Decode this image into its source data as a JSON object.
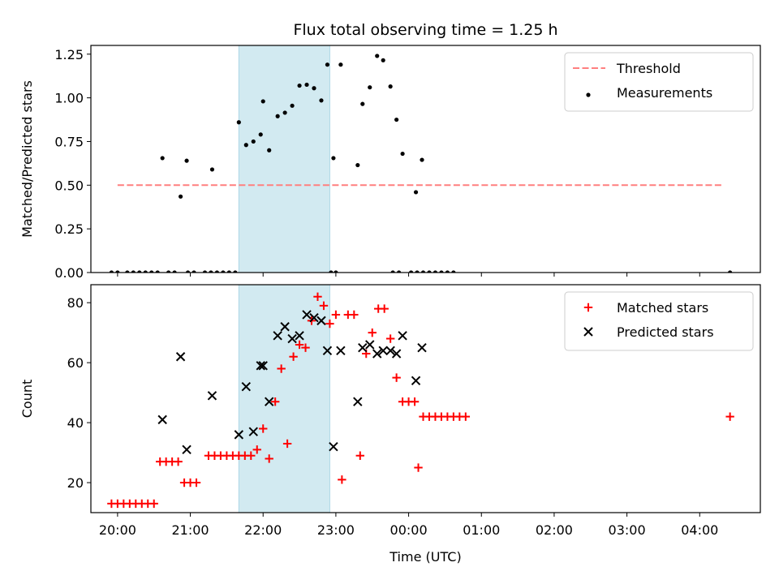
{
  "figure": {
    "title": "Flux total observing time = 1.25 h"
  },
  "colors": {
    "threshold": "#ff7f7f",
    "highlight": "#add8e6",
    "measurement": "#000000",
    "matched": "#ff0000",
    "predicted": "#000000"
  },
  "chart_data": [
    {
      "type": "scatter",
      "name": "ratio-panel",
      "title": "Flux total observing time = 1.25 h",
      "xlabel": "",
      "ylabel": "Matched/Predicted stars",
      "ylim": [
        0,
        1.3
      ],
      "yticks": [
        0,
        0.25,
        0.5,
        0.75,
        1.0,
        1.25
      ],
      "ytick_labels": [
        "0.00",
        "0.25",
        "0.50",
        "0.75",
        "1.00",
        "1.25"
      ],
      "xlim": [
        "19:38",
        "04:50"
      ],
      "xticks": [
        "20:00",
        "21:00",
        "22:00",
        "23:00",
        "00:00",
        "01:00",
        "02:00",
        "03:00",
        "04:00"
      ],
      "shaded_region": {
        "x0": "21:40",
        "x1": "22:55"
      },
      "legend": {
        "position": "top-right",
        "entries": [
          "Threshold",
          "Measurements"
        ]
      },
      "threshold": {
        "name": "Threshold",
        "y": 0.5,
        "x0": "20:00",
        "x1": "04:20"
      },
      "series": [
        {
          "name": "Measurements",
          "style": "dot",
          "points": [
            [
              "19:55",
              0
            ],
            [
              "20:00",
              0
            ],
            [
              "20:08",
              0
            ],
            [
              "20:13",
              0
            ],
            [
              "20:18",
              0
            ],
            [
              "20:23",
              0
            ],
            [
              "20:28",
              0
            ],
            [
              "20:33",
              0
            ],
            [
              "20:42",
              0
            ],
            [
              "20:47",
              0
            ],
            [
              "20:58",
              0
            ],
            [
              "21:03",
              0
            ],
            [
              "21:12",
              0
            ],
            [
              "21:17",
              0
            ],
            [
              "21:22",
              0
            ],
            [
              "21:27",
              0
            ],
            [
              "21:32",
              0
            ],
            [
              "21:37",
              0
            ],
            [
              "22:56",
              0
            ],
            [
              "23:00",
              0
            ],
            [
              "23:47",
              0
            ],
            [
              "23:52",
              0
            ],
            [
              "00:02",
              0
            ],
            [
              "00:07",
              0
            ],
            [
              "00:12",
              0
            ],
            [
              "00:17",
              0
            ],
            [
              "00:22",
              0
            ],
            [
              "00:27",
              0
            ],
            [
              "00:32",
              0
            ],
            [
              "00:37",
              0
            ],
            [
              "04:25",
              0
            ],
            [
              "20:37",
              0.655
            ],
            [
              "20:52",
              0.435
            ],
            [
              "20:57",
              0.64
            ],
            [
              "21:18",
              0.59
            ],
            [
              "21:40",
              0.86
            ],
            [
              "21:46",
              0.73
            ],
            [
              "21:52",
              0.75
            ],
            [
              "21:58",
              0.79
            ],
            [
              "22:00",
              0.98
            ],
            [
              "22:05",
              0.7
            ],
            [
              "22:12",
              0.895
            ],
            [
              "22:18",
              0.915
            ],
            [
              "22:24",
              0.955
            ],
            [
              "22:30",
              1.07
            ],
            [
              "22:36",
              1.075
            ],
            [
              "22:42",
              1.055
            ],
            [
              "22:48",
              0.985
            ],
            [
              "22:53",
              1.19
            ],
            [
              "22:58",
              0.655
            ],
            [
              "23:04",
              1.19
            ],
            [
              "23:18",
              0.615
            ],
            [
              "23:22",
              0.965
            ],
            [
              "23:28",
              1.06
            ],
            [
              "23:34",
              1.24
            ],
            [
              "23:39",
              1.215
            ],
            [
              "23:45",
              1.065
            ],
            [
              "23:50",
              0.875
            ],
            [
              "23:55",
              0.68
            ],
            [
              "00:06",
              0.46
            ],
            [
              "00:11",
              0.645
            ]
          ]
        }
      ]
    },
    {
      "type": "scatter",
      "name": "count-panel",
      "title": "",
      "xlabel": "Time (UTC)",
      "ylabel": "Count",
      "ylim": [
        10,
        86
      ],
      "yticks": [
        20,
        40,
        60,
        80
      ],
      "ytick_labels": [
        "20",
        "40",
        "60",
        "80"
      ],
      "xlim": [
        "19:38",
        "04:50"
      ],
      "xticks": [
        "20:00",
        "21:00",
        "22:00",
        "23:00",
        "00:00",
        "01:00",
        "02:00",
        "03:00",
        "04:00"
      ],
      "shaded_region": {
        "x0": "21:40",
        "x1": "22:55"
      },
      "legend": {
        "position": "top-right",
        "entries": [
          "Matched stars",
          "Predicted stars"
        ]
      },
      "series": [
        {
          "name": "Matched stars",
          "style": "plus",
          "points": [
            [
              "19:55",
              13
            ],
            [
              "20:00",
              13
            ],
            [
              "20:05",
              13
            ],
            [
              "20:10",
              13
            ],
            [
              "20:15",
              13
            ],
            [
              "20:20",
              13
            ],
            [
              "20:25",
              13
            ],
            [
              "20:30",
              13
            ],
            [
              "20:35",
              27
            ],
            [
              "20:40",
              27
            ],
            [
              "20:45",
              27
            ],
            [
              "20:50",
              27
            ],
            [
              "20:55",
              20
            ],
            [
              "21:00",
              20
            ],
            [
              "21:05",
              20
            ],
            [
              "21:15",
              29
            ],
            [
              "21:20",
              29
            ],
            [
              "21:25",
              29
            ],
            [
              "21:30",
              29
            ],
            [
              "21:35",
              29
            ],
            [
              "21:40",
              29
            ],
            [
              "21:45",
              29
            ],
            [
              "21:50",
              29
            ],
            [
              "21:55",
              31
            ],
            [
              "22:00",
              38
            ],
            [
              "22:05",
              28
            ],
            [
              "22:10",
              47
            ],
            [
              "22:15",
              58
            ],
            [
              "22:20",
              33
            ],
            [
              "22:25",
              62
            ],
            [
              "22:30",
              66
            ],
            [
              "22:35",
              65
            ],
            [
              "22:40",
              74
            ],
            [
              "22:45",
              82
            ],
            [
              "22:50",
              79
            ],
            [
              "22:55",
              73
            ],
            [
              "23:00",
              76
            ],
            [
              "23:05",
              21
            ],
            [
              "23:10",
              76
            ],
            [
              "23:15",
              76
            ],
            [
              "23:20",
              29
            ],
            [
              "23:25",
              63
            ],
            [
              "23:30",
              70
            ],
            [
              "23:35",
              78
            ],
            [
              "23:40",
              78
            ],
            [
              "23:45",
              68
            ],
            [
              "23:50",
              55
            ],
            [
              "23:55",
              47
            ],
            [
              "00:00",
              47
            ],
            [
              "00:05",
              47
            ],
            [
              "00:08",
              25
            ],
            [
              "00:12",
              42
            ],
            [
              "00:17",
              42
            ],
            [
              "00:22",
              42
            ],
            [
              "00:27",
              42
            ],
            [
              "00:32",
              42
            ],
            [
              "00:37",
              42
            ],
            [
              "00:42",
              42
            ],
            [
              "00:47",
              42
            ],
            [
              "04:25",
              42
            ]
          ]
        },
        {
          "name": "Predicted stars",
          "style": "x",
          "points": [
            [
              "20:37",
              41
            ],
            [
              "20:52",
              62
            ],
            [
              "20:57",
              31
            ],
            [
              "21:18",
              49
            ],
            [
              "21:40",
              36
            ],
            [
              "21:46",
              52
            ],
            [
              "21:52",
              37
            ],
            [
              "21:58",
              59
            ],
            [
              "22:00",
              59
            ],
            [
              "22:05",
              47
            ],
            [
              "22:12",
              69
            ],
            [
              "22:18",
              72
            ],
            [
              "22:24",
              68
            ],
            [
              "22:30",
              69
            ],
            [
              "22:36",
              76
            ],
            [
              "22:42",
              75
            ],
            [
              "22:48",
              74
            ],
            [
              "22:53",
              64
            ],
            [
              "22:58",
              32
            ],
            [
              "23:04",
              64
            ],
            [
              "23:18",
              47
            ],
            [
              "23:22",
              65
            ],
            [
              "23:28",
              66
            ],
            [
              "23:34",
              63
            ],
            [
              "23:39",
              64
            ],
            [
              "23:45",
              64
            ],
            [
              "23:50",
              63
            ],
            [
              "23:55",
              69
            ],
            [
              "00:06",
              54
            ],
            [
              "00:11",
              65
            ]
          ]
        }
      ]
    }
  ]
}
